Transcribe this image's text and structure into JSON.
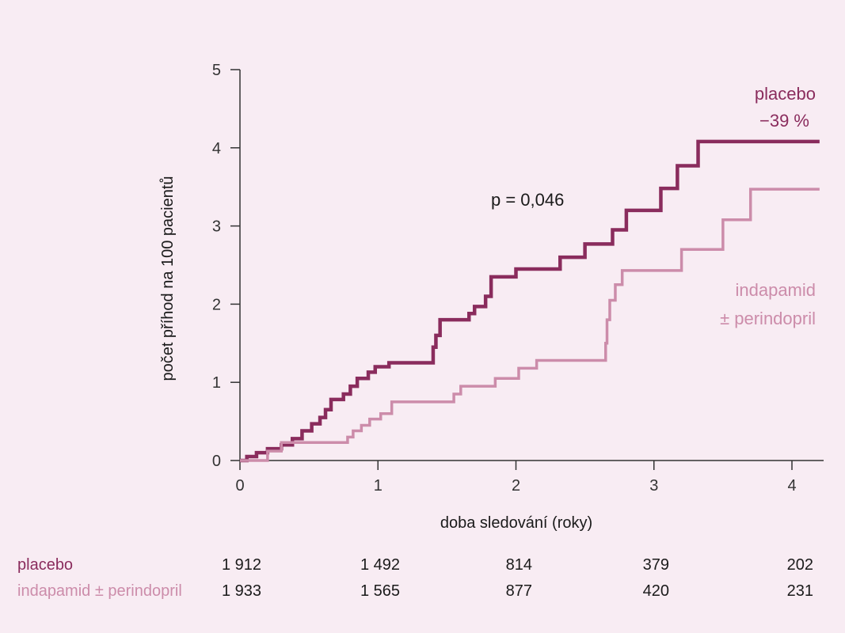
{
  "chart_data": {
    "type": "line",
    "title": "",
    "xlabel": "doba sledování (roky)",
    "ylabel": "počet příhod na 100 pacientů",
    "xlim": [
      0,
      4.2
    ],
    "ylim": [
      0,
      5
    ],
    "x_ticks": [
      "0",
      "1",
      "2",
      "3",
      "4"
    ],
    "y_ticks": [
      "0",
      "1",
      "2",
      "3",
      "4",
      "5"
    ],
    "grid": false,
    "annotation": "p = 0,046",
    "series": [
      {
        "name": "placebo",
        "label_line2": "−39 %",
        "color": "#8a2c5d",
        "step_points": [
          [
            0,
            0
          ],
          [
            0.05,
            0.05
          ],
          [
            0.12,
            0.1
          ],
          [
            0.2,
            0.15
          ],
          [
            0.3,
            0.2
          ],
          [
            0.38,
            0.28
          ],
          [
            0.45,
            0.38
          ],
          [
            0.52,
            0.47
          ],
          [
            0.58,
            0.55
          ],
          [
            0.62,
            0.65
          ],
          [
            0.66,
            0.78
          ],
          [
            0.75,
            0.85
          ],
          [
            0.8,
            0.95
          ],
          [
            0.85,
            1.05
          ],
          [
            0.93,
            1.13
          ],
          [
            0.98,
            1.2
          ],
          [
            1.08,
            1.25
          ],
          [
            1.4,
            1.45
          ],
          [
            1.42,
            1.6
          ],
          [
            1.45,
            1.8
          ],
          [
            1.66,
            1.88
          ],
          [
            1.7,
            1.97
          ],
          [
            1.78,
            2.1
          ],
          [
            1.82,
            2.35
          ],
          [
            2.0,
            2.45
          ],
          [
            2.32,
            2.6
          ],
          [
            2.5,
            2.77
          ],
          [
            2.7,
            2.95
          ],
          [
            2.8,
            3.2
          ],
          [
            3.05,
            3.48
          ],
          [
            3.17,
            3.77
          ],
          [
            3.32,
            4.08
          ],
          [
            4.2,
            4.08
          ]
        ]
      },
      {
        "name": "indapamid",
        "label_line2": "± perindopril",
        "color": "#cc8caa",
        "step_points": [
          [
            0,
            0
          ],
          [
            0.2,
            0.12
          ],
          [
            0.3,
            0.23
          ],
          [
            0.78,
            0.3
          ],
          [
            0.82,
            0.38
          ],
          [
            0.88,
            0.45
          ],
          [
            0.94,
            0.53
          ],
          [
            1.02,
            0.6
          ],
          [
            1.1,
            0.75
          ],
          [
            1.55,
            0.85
          ],
          [
            1.6,
            0.95
          ],
          [
            1.85,
            1.05
          ],
          [
            2.02,
            1.18
          ],
          [
            2.15,
            1.28
          ],
          [
            2.65,
            1.5
          ],
          [
            2.66,
            1.8
          ],
          [
            2.68,
            2.05
          ],
          [
            2.72,
            2.25
          ],
          [
            2.77,
            2.43
          ],
          [
            3.2,
            2.7
          ],
          [
            3.5,
            3.08
          ],
          [
            3.7,
            3.47
          ],
          [
            4.2,
            3.47
          ]
        ]
      }
    ]
  },
  "risk_table": {
    "rows": [
      {
        "label": "placebo",
        "values": [
          "1 912",
          "1 492",
          "814",
          "379",
          "202"
        ],
        "color": "#8a2c5d"
      },
      {
        "label": "indapamid ± perindopril",
        "values": [
          "1 933",
          "1 565",
          "877",
          "420",
          "231"
        ],
        "color": "#cc8caa"
      }
    ]
  }
}
